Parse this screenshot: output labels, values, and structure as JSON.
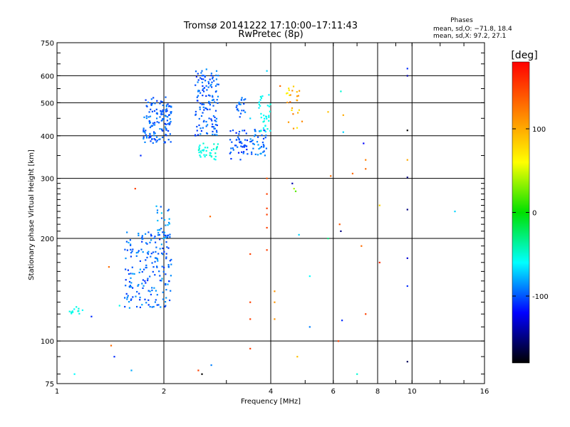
{
  "chart_data": {
    "type": "scatter",
    "title": "Tromsø 20141222 17:10:00–17:11:43",
    "subtitle": "RwPretec (8p)",
    "stats": {
      "heading": "Phases",
      "line1": "mean, sd,O: −71.8, 18.4",
      "line2": "mean, sd,X:  97.2, 27.1"
    },
    "xlabel": "Frequency [MHz]",
    "ylabel": "Stationary phase Virtual Height [km]",
    "x_scale": "log",
    "y_scale": "log",
    "xlim": [
      1,
      16
    ],
    "ylim": [
      75,
      750
    ],
    "x_ticks": [
      1,
      2,
      4,
      6,
      8,
      10,
      16
    ],
    "x_tick_labels": [
      "1",
      "2",
      "4",
      "6",
      "8",
      "10",
      "16"
    ],
    "y_ticks": [
      75,
      100,
      200,
      300,
      400,
      500,
      600,
      750
    ],
    "y_tick_labels": [
      "75",
      "100",
      "200",
      "300",
      "400",
      "500",
      "600",
      "750"
    ],
    "x_grid": [
      2,
      4,
      6,
      8,
      10
    ],
    "y_grid": [
      100,
      200,
      300,
      400,
      500,
      600
    ],
    "grid": true,
    "colorbar": {
      "label": "[deg]",
      "range": [
        -180,
        180
      ],
      "ticks": [
        100,
        0,
        -100
      ],
      "tick_labels": [
        "100",
        "0",
        "-100"
      ],
      "colors": [
        "#ff0000",
        "#ff8000",
        "#ffff00",
        "#00e000",
        "#00ffff",
        "#0000ff",
        "#000000"
      ]
    },
    "clusters": [
      {
        "x": [
          1.75,
          2.1
        ],
        "y": [
          380,
          520
        ],
        "phase": [
          -110,
          -85
        ],
        "n": 140
      },
      {
        "x": [
          2.45,
          2.85
        ],
        "y": [
          400,
          630
        ],
        "phase": [
          -110,
          -85
        ],
        "n": 130
      },
      {
        "x": [
          2.5,
          2.85
        ],
        "y": [
          340,
          380
        ],
        "phase": [
          -60,
          -45
        ],
        "n": 35
      },
      {
        "x": [
          3.05,
          3.45
        ],
        "y": [
          340,
          420
        ],
        "phase": [
          -115,
          -90
        ],
        "n": 45
      },
      {
        "x": [
          3.2,
          3.4
        ],
        "y": [
          450,
          520
        ],
        "phase": [
          -105,
          -85
        ],
        "n": 20
      },
      {
        "x": [
          3.5,
          3.9
        ],
        "y": [
          350,
          420
        ],
        "phase": [
          -105,
          -80
        ],
        "n": 40
      },
      {
        "x": [
          3.7,
          4.0
        ],
        "y": [
          410,
          530
        ],
        "phase": [
          -65,
          -50
        ],
        "n": 35
      },
      {
        "x": [
          4.4,
          4.9
        ],
        "y": [
          420,
          560
        ],
        "phase": [
          60,
          130
        ],
        "n": 25
      },
      {
        "x": [
          1.55,
          2.1
        ],
        "y": [
          125,
          210
        ],
        "phase": [
          -110,
          -80
        ],
        "n": 190
      },
      {
        "x": [
          1.9,
          2.1
        ],
        "y": [
          200,
          250
        ],
        "phase": [
          -100,
          -70
        ],
        "n": 25
      },
      {
        "x": [
          1.08,
          1.18
        ],
        "y": [
          120,
          126
        ],
        "phase": [
          -60,
          -50
        ],
        "n": 12
      }
    ],
    "points": [
      {
        "x": 1.4,
        "y": 165,
        "phase": 130
      },
      {
        "x": 1.42,
        "y": 97,
        "phase": 130
      },
      {
        "x": 1.45,
        "y": 90,
        "phase": -110
      },
      {
        "x": 1.5,
        "y": 127,
        "phase": -55
      },
      {
        "x": 1.25,
        "y": 118,
        "phase": -110
      },
      {
        "x": 1.12,
        "y": 80,
        "phase": -60
      },
      {
        "x": 1.62,
        "y": 82,
        "phase": -80
      },
      {
        "x": 1.66,
        "y": 280,
        "phase": 150
      },
      {
        "x": 1.72,
        "y": 350,
        "phase": -110
      },
      {
        "x": 2.7,
        "y": 232,
        "phase": 130
      },
      {
        "x": 2.5,
        "y": 82,
        "phase": 150
      },
      {
        "x": 2.56,
        "y": 80,
        "phase": -180
      },
      {
        "x": 2.72,
        "y": 85,
        "phase": -90
      },
      {
        "x": 3.5,
        "y": 180,
        "phase": 150
      },
      {
        "x": 3.5,
        "y": 130,
        "phase": 150
      },
      {
        "x": 3.5,
        "y": 116,
        "phase": 150
      },
      {
        "x": 3.5,
        "y": 95,
        "phase": 150
      },
      {
        "x": 3.5,
        "y": 450,
        "phase": -70
      },
      {
        "x": 3.9,
        "y": 300,
        "phase": 140
      },
      {
        "x": 3.9,
        "y": 270,
        "phase": 150
      },
      {
        "x": 3.9,
        "y": 245,
        "phase": 150
      },
      {
        "x": 3.9,
        "y": 235,
        "phase": 150
      },
      {
        "x": 3.9,
        "y": 215,
        "phase": 150
      },
      {
        "x": 3.9,
        "y": 185,
        "phase": 150
      },
      {
        "x": 3.9,
        "y": 620,
        "phase": -70
      },
      {
        "x": 4.1,
        "y": 140,
        "phase": 110
      },
      {
        "x": 4.1,
        "y": 130,
        "phase": 110
      },
      {
        "x": 4.1,
        "y": 116,
        "phase": 110
      },
      {
        "x": 4.25,
        "y": 560,
        "phase": 130
      },
      {
        "x": 4.6,
        "y": 290,
        "phase": -140
      },
      {
        "x": 4.65,
        "y": 280,
        "phase": 40
      },
      {
        "x": 4.7,
        "y": 275,
        "phase": 20
      },
      {
        "x": 4.75,
        "y": 90,
        "phase": 90
      },
      {
        "x": 4.8,
        "y": 205,
        "phase": -70
      },
      {
        "x": 5.15,
        "y": 155,
        "phase": -60
      },
      {
        "x": 5.15,
        "y": 110,
        "phase": -90
      },
      {
        "x": 5.8,
        "y": 470,
        "phase": 90
      },
      {
        "x": 5.8,
        "y": 200,
        "phase": -30
      },
      {
        "x": 5.9,
        "y": 305,
        "phase": 130
      },
      {
        "x": 6.2,
        "y": 100,
        "phase": 150
      },
      {
        "x": 6.25,
        "y": 220,
        "phase": 140
      },
      {
        "x": 6.3,
        "y": 210,
        "phase": -150
      },
      {
        "x": 6.35,
        "y": 115,
        "phase": -110
      },
      {
        "x": 6.4,
        "y": 410,
        "phase": -70
      },
      {
        "x": 6.4,
        "y": 460,
        "phase": 100
      },
      {
        "x": 6.3,
        "y": 540,
        "phase": -50
      },
      {
        "x": 6.8,
        "y": 310,
        "phase": 130
      },
      {
        "x": 7.0,
        "y": 80,
        "phase": -50
      },
      {
        "x": 7.2,
        "y": 190,
        "phase": 130
      },
      {
        "x": 7.3,
        "y": 380,
        "phase": -120
      },
      {
        "x": 7.4,
        "y": 340,
        "phase": 120
      },
      {
        "x": 7.4,
        "y": 320,
        "phase": 130
      },
      {
        "x": 7.4,
        "y": 120,
        "phase": 150
      },
      {
        "x": 8.1,
        "y": 170,
        "phase": 160
      },
      {
        "x": 8.1,
        "y": 250,
        "phase": 80
      },
      {
        "x": 9.7,
        "y": 630,
        "phase": -110
      },
      {
        "x": 9.7,
        "y": 600,
        "phase": -140
      },
      {
        "x": 9.7,
        "y": 415,
        "phase": -180
      },
      {
        "x": 9.7,
        "y": 340,
        "phase": 100
      },
      {
        "x": 9.7,
        "y": 302,
        "phase": -150
      },
      {
        "x": 9.7,
        "y": 243,
        "phase": -150
      },
      {
        "x": 9.7,
        "y": 175,
        "phase": -130
      },
      {
        "x": 9.7,
        "y": 145,
        "phase": -110
      },
      {
        "x": 9.7,
        "y": 87,
        "phase": -160
      },
      {
        "x": 13.2,
        "y": 240,
        "phase": -70
      }
    ]
  }
}
